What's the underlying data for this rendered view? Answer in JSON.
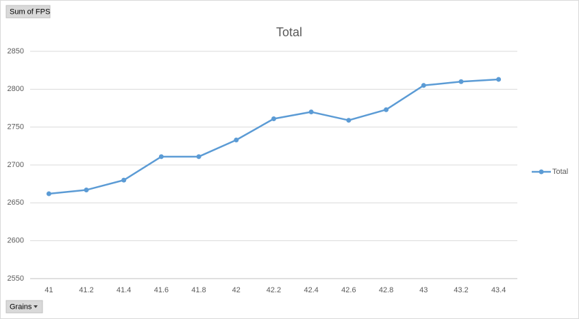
{
  "field_buttons": {
    "values": "Sum of FPS",
    "axis": "Grains"
  },
  "chart_data": {
    "type": "line",
    "title": "Total",
    "categories": [
      "41",
      "41.2",
      "41.4",
      "41.6",
      "41.8",
      "42",
      "42.2",
      "42.4",
      "42.6",
      "42.8",
      "43",
      "43.2",
      "43.4"
    ],
    "series": [
      {
        "name": "Total",
        "color": "#5b9bd5",
        "values": [
          2662,
          2667,
          2680,
          2711,
          2711,
          2733,
          2761,
          2770,
          2759,
          2773,
          2805,
          2810,
          2813
        ]
      }
    ],
    "ylim": [
      2550,
      2850
    ],
    "yticks": [
      2550,
      2600,
      2650,
      2700,
      2750,
      2800,
      2850
    ],
    "grid": true,
    "legend": "right"
  }
}
